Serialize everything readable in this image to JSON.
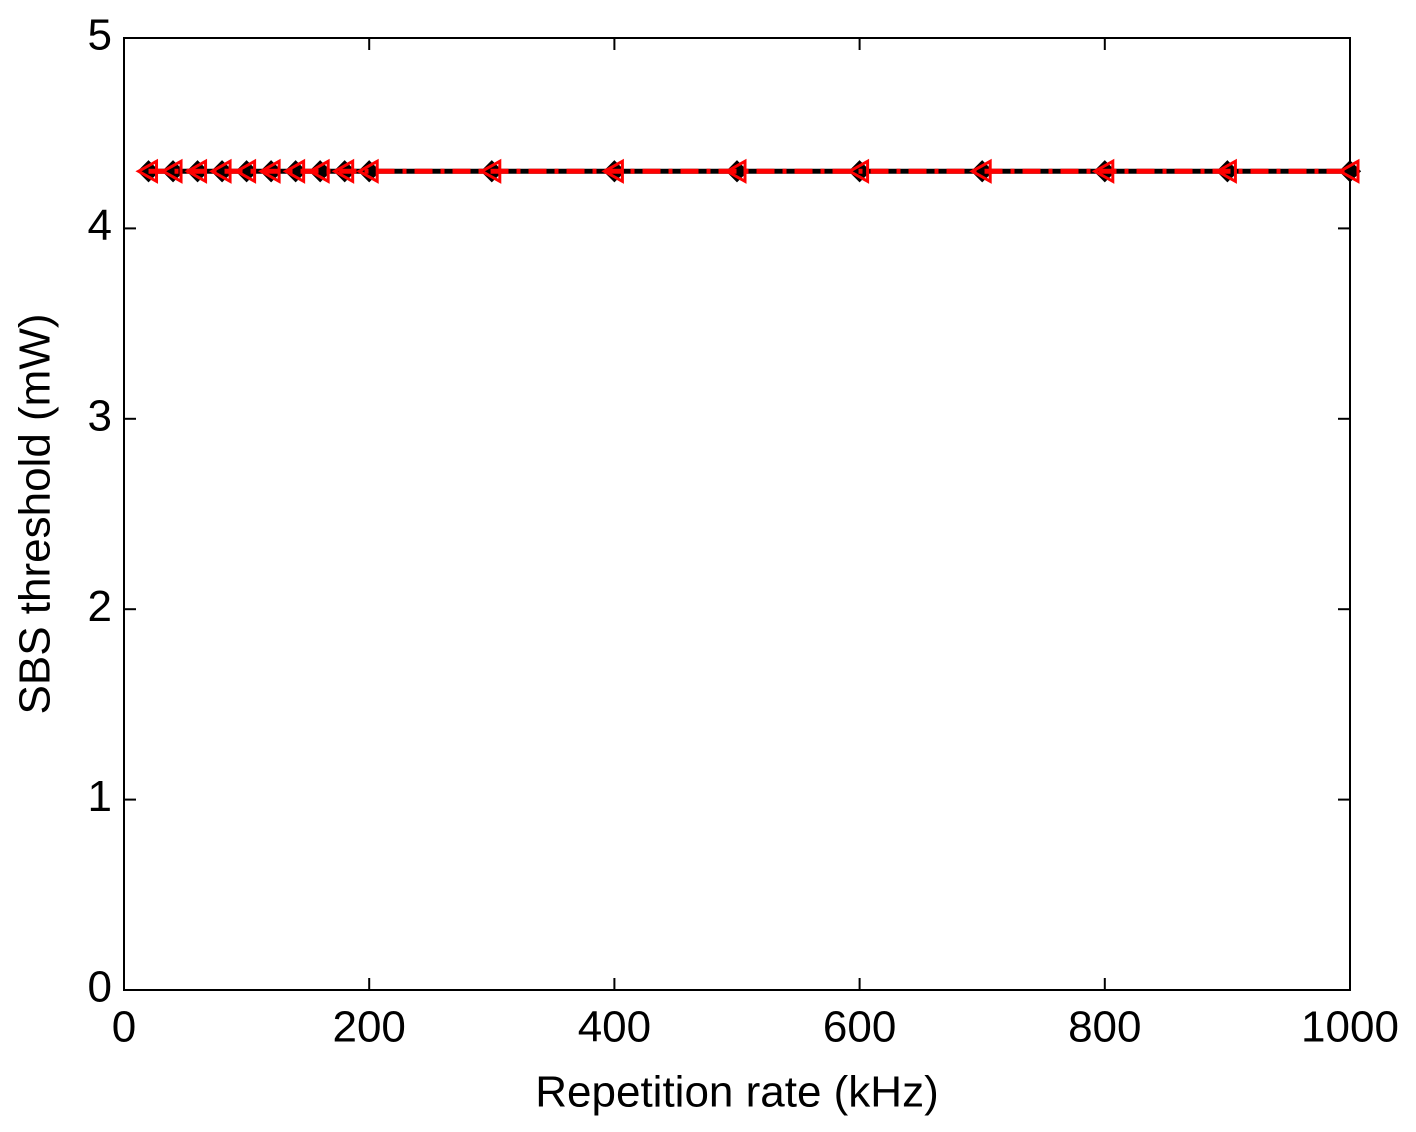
{
  "chart_data": {
    "type": "line",
    "xlabel": "Repetition rate (kHz)",
    "ylabel": "SBS threshold (mW)",
    "x": [
      20,
      40,
      60,
      80,
      100,
      120,
      140,
      160,
      180,
      200,
      300,
      400,
      500,
      600,
      700,
      800,
      900,
      1000
    ],
    "series": [
      {
        "color": "#000000",
        "marker": "diamond",
        "linestyle": "solid",
        "values": [
          4.3,
          4.3,
          4.3,
          4.3,
          4.3,
          4.3,
          4.3,
          4.3,
          4.3,
          4.3,
          4.3,
          4.3,
          4.3,
          4.3,
          4.3,
          4.3,
          4.3,
          4.3
        ]
      },
      {
        "color": "#ff0000",
        "marker": "triangle-left",
        "linestyle": "dashdot",
        "values": [
          4.3,
          4.3,
          4.3,
          4.3,
          4.3,
          4.3,
          4.3,
          4.3,
          4.3,
          4.3,
          4.3,
          4.3,
          4.3,
          4.3,
          4.3,
          4.3,
          4.3,
          4.3
        ]
      }
    ],
    "xlim": [
      0,
      1000
    ],
    "xticks": [
      0,
      200,
      400,
      600,
      800,
      1000
    ],
    "ylim": [
      0,
      5
    ],
    "yticks": [
      0,
      1,
      2,
      3,
      4,
      5
    ],
    "grid": false
  }
}
